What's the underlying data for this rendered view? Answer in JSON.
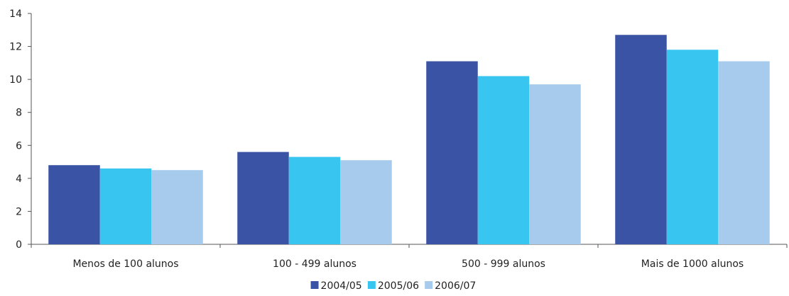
{
  "chart_data": {
    "type": "bar",
    "categories": [
      "Menos de 100 alunos",
      "100 - 499 alunos",
      "500 - 999 alunos",
      "Mais de 1000 alunos"
    ],
    "series": [
      {
        "name": "2004/05",
        "color": "#3a53a4",
        "values": [
          4.8,
          5.6,
          11.1,
          12.7
        ]
      },
      {
        "name": "2005/06",
        "color": "#38c6f0",
        "values": [
          4.6,
          5.3,
          10.2,
          11.8
        ]
      },
      {
        "name": "2006/07",
        "color": "#a7cbec",
        "values": [
          4.5,
          5.1,
          9.7,
          11.1
        ]
      }
    ],
    "yticks": [
      0,
      2,
      4,
      6,
      8,
      10,
      12,
      14
    ],
    "ylim": [
      0,
      14
    ],
    "grid": false,
    "legend_position": "bottom-center",
    "title": "",
    "xlabel": "",
    "ylabel": ""
  }
}
